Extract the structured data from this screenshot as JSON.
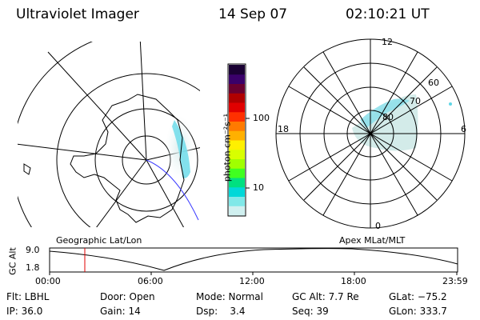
{
  "header": {
    "title": "Ultraviolet Imager",
    "date": "14 Sep 07",
    "time": "02:10:21 UT"
  },
  "colorbar": {
    "unit_label": "photon cm⁻²s⁻¹",
    "ticks": [
      "100",
      "10"
    ],
    "colors": [
      "#1a0033",
      "#3a006a",
      "#6a0030",
      "#b00000",
      "#e00000",
      "#ff3000",
      "#ff7a00",
      "#ffb000",
      "#fff000",
      "#d8ff00",
      "#a0ff00",
      "#40ff20",
      "#00e080",
      "#00d8d8",
      "#80e8e8",
      "#d0f0f0"
    ]
  },
  "geo_map": {
    "label": "Geographic Lat/Lon"
  },
  "apex_map": {
    "label": "Apex MLat/MLT",
    "mlt_labels": {
      "top": "12",
      "left": "18",
      "right": "6",
      "bottom": "0"
    },
    "lat_labels": [
      "60",
      "70",
      "80"
    ]
  },
  "altitude_plot": {
    "ylabel": "GC Alt",
    "y_ticks": [
      "9.0",
      "1.8"
    ],
    "x_ticks": [
      "00:00",
      "06:00",
      "12:00",
      "18:00",
      "23:59"
    ],
    "marker_time": "02:10"
  },
  "info": {
    "flt": "Flt: LBHL",
    "ip": "IP: 36.0",
    "door": "Door: Open",
    "gain": "Gain: 14",
    "mode": "Mode: Normal",
    "dsp": "Dsp:    3.4",
    "gc_alt": "GC Alt: 7.7 Re",
    "seq": "Seq: 39",
    "glat": "GLat: −75.2",
    "glon": "GLon: 333.7"
  }
}
